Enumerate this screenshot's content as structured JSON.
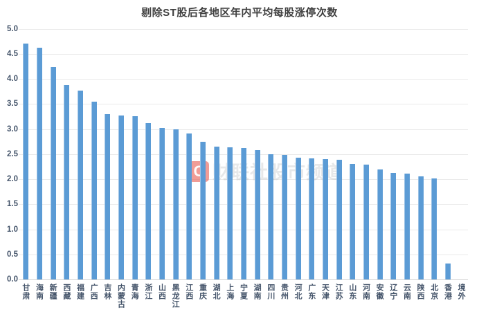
{
  "chart_data": {
    "type": "bar",
    "title": "剔除ST股后各地区年内平均每股涨停次数",
    "categories": [
      "甘肃",
      "海南",
      "新疆",
      "西藏",
      "福建",
      "广西",
      "吉林",
      "内蒙古",
      "青海",
      "浙江",
      "山西",
      "黑龙江",
      "江西",
      "重庆",
      "湖北",
      "上海",
      "宁夏",
      "湖南",
      "四川",
      "贵州",
      "河北",
      "广东",
      "天津",
      "江苏",
      "山东",
      "河南",
      "安徽",
      "辽宁",
      "云南",
      "陕西",
      "北京",
      "香港",
      "境外"
    ],
    "values": [
      4.7,
      4.62,
      4.24,
      3.87,
      3.76,
      3.54,
      3.3,
      3.27,
      3.26,
      3.12,
      3.02,
      3.0,
      2.91,
      2.75,
      2.65,
      2.63,
      2.62,
      2.58,
      2.49,
      2.48,
      2.43,
      2.42,
      2.4,
      2.39,
      2.31,
      2.29,
      2.19,
      2.12,
      2.11,
      2.05,
      2.02,
      0.32,
      0
    ],
    "xlabel": "",
    "ylabel": "",
    "ylim": [
      0,
      5
    ],
    "ytick_step": 0.5,
    "ytick_format_decimals": 1,
    "grid": "horizontal",
    "legend_position": "none",
    "bar_color": "#5B9BD5"
  },
  "watermark": {
    "logo_letter": "C",
    "text": "财联社股市频道"
  },
  "colors": {
    "bar": "#5B9BD5",
    "bar_edge": "#9DC3E6",
    "title": "#404040",
    "axis_label": "#44546A",
    "gridline": "#EAEAEA",
    "axis_line": "#D5D5D5",
    "watermark_logo": "#E76056",
    "watermark_text": "#C0C2C4",
    "background": "#FFFFFF"
  }
}
